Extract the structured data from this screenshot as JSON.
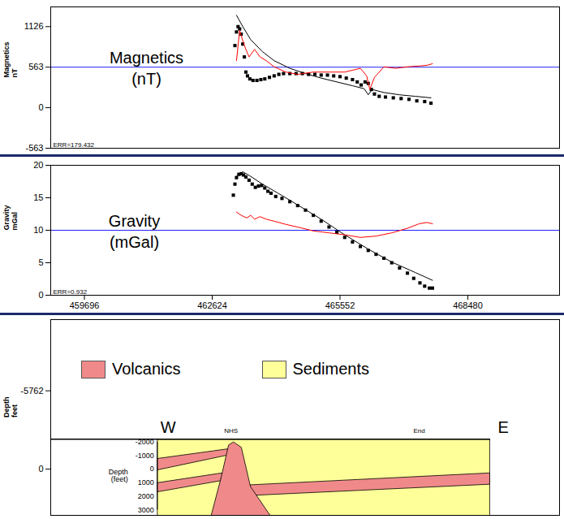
{
  "chart_data": [
    {
      "type": "line",
      "ylabel": "Magnetics nT",
      "panel_label": "Magnetics (nT)",
      "error_label": "ERR=179.432",
      "reference_line": {
        "value": 563,
        "color": "#2020ff"
      },
      "xlim": [
        458924,
        470581
      ],
      "ylim": [
        -563,
        1400
      ],
      "yticks": [
        -563,
        0,
        563,
        1126
      ],
      "tick_labels": "y",
      "series": [
        {
          "type": "scatter",
          "marker": "square",
          "color": "#000000",
          "x": [
            463144,
            463180,
            463216,
            463252,
            463288,
            463324,
            463360,
            463396,
            463432,
            463486,
            463558,
            463648,
            463738,
            463828,
            463935,
            464043,
            464150,
            464258,
            464402,
            464545,
            464689,
            464833,
            464976,
            465120,
            465264,
            465407,
            465551,
            465695,
            465838,
            465946,
            466036,
            466126,
            466198,
            466269,
            466341,
            466449,
            466593,
            466773,
            466952,
            467132,
            467311,
            467491,
            467635
          ],
          "values": [
            863,
            1052,
            1126,
            1094,
            1021,
            884,
            705,
            495,
            442,
            400,
            379,
            379,
            390,
            400,
            421,
            442,
            463,
            474,
            474,
            474,
            474,
            463,
            463,
            453,
            453,
            442,
            432,
            411,
            390,
            358,
            316,
            358,
            337,
            253,
            190,
            158,
            148,
            137,
            127,
            116,
            95,
            85,
            63
          ]
        },
        {
          "type": "line",
          "line_style": "solid",
          "color": "#000000",
          "x": [
            463180,
            463324,
            463504,
            463773,
            464043,
            464402,
            464761,
            465120,
            465479,
            465838,
            466108,
            466198,
            466287,
            466557,
            466916,
            467275,
            467635
          ],
          "values": [
            1284,
            1126,
            947,
            779,
            653,
            547,
            474,
            411,
            358,
            305,
            263,
            179,
            253,
            211,
            179,
            158,
            137
          ]
        },
        {
          "type": "line",
          "line_style": "solid",
          "color": "#ff0000",
          "x": [
            463180,
            463252,
            463360,
            463468,
            463594,
            463720,
            463864,
            464043,
            464312,
            464581,
            464941,
            465300,
            465659,
            466018,
            466162,
            466234,
            466341,
            466557,
            466827,
            467096,
            467365,
            467545,
            467671
          ],
          "values": [
            653,
            1073,
            863,
            705,
            810,
            705,
            653,
            568,
            495,
            463,
            495,
            495,
            495,
            547,
            442,
            253,
            421,
            568,
            547,
            568,
            579,
            589,
            611
          ]
        }
      ]
    },
    {
      "type": "line",
      "ylabel": "Gravity mGal",
      "panel_label": "Gravity (mGal)",
      "error_label": "ERR=0.932",
      "reference_line": {
        "value": 10,
        "color": "#2020ff"
      },
      "xlim": [
        458924,
        470581
      ],
      "xticks": [
        459696,
        462624,
        465552,
        468480
      ],
      "ylim": [
        0,
        20
      ],
      "yticks": [
        0,
        5,
        10,
        15,
        20
      ],
      "tick_labels": true,
      "series": [
        {
          "type": "scatter",
          "marker": "square",
          "color": "#000000",
          "x": [
            463108,
            463144,
            463180,
            463234,
            463288,
            463342,
            463396,
            463468,
            463540,
            463612,
            463684,
            463756,
            463828,
            463900,
            463971,
            464079,
            464222,
            464402,
            464581,
            464761,
            464941,
            465120,
            465300,
            465479,
            465659,
            465838,
            466018,
            466198,
            466377,
            466557,
            466737,
            466916,
            467096,
            467240,
            467383,
            467491,
            467599,
            467671
          ],
          "values": [
            15.4,
            17.1,
            18.1,
            18.6,
            18.7,
            18.5,
            18.2,
            17.7,
            17.1,
            16.6,
            16.8,
            16.9,
            16.5,
            16,
            15.7,
            15.2,
            14.9,
            14.4,
            13.8,
            13.1,
            12.3,
            11.4,
            10.5,
            9.7,
            8.9,
            8.2,
            7.5,
            6.9,
            6.3,
            5.7,
            5,
            4.2,
            3.4,
            2.6,
            1.9,
            1.4,
            1.1,
            1.1
          ]
        },
        {
          "type": "line",
          "line_style": "solid",
          "color": "#000000",
          "x": [
            463180,
            463324,
            463504,
            463773,
            464133,
            464581,
            465120,
            465659,
            466198,
            466737,
            467275,
            467671
          ],
          "values": [
            18.3,
            19,
            18.3,
            17.1,
            15.7,
            13.9,
            11.7,
            9.3,
            7.1,
            5.1,
            3.5,
            2.3
          ]
        },
        {
          "type": "line",
          "line_style": "solid",
          "color": "#ff0000",
          "x": [
            463180,
            463288,
            463414,
            463504,
            463594,
            463720,
            463864,
            464043,
            464312,
            464581,
            464941,
            465300,
            465659,
            466018,
            466377,
            466737,
            467096,
            467365,
            467545,
            467671
          ],
          "values": [
            12.8,
            12.3,
            11.9,
            12.3,
            11.7,
            12.1,
            11.7,
            11.4,
            10.9,
            10.5,
            9.9,
            9.6,
            9.3,
            8.9,
            9.1,
            9.6,
            10.3,
            11,
            11.2,
            11
          ]
        }
      ]
    },
    {
      "type": "cross-section",
      "ylabel": "Depth feet",
      "xlim": [
        458924,
        470581
      ],
      "ylim": [
        -11000,
        3400
      ],
      "yticks": [
        -5762,
        0
      ],
      "tick_labels": "y",
      "legend": "top",
      "surface": -2200,
      "ends": {
        "left": "W",
        "right": "E"
      },
      "markers": [
        {
          "label": "NHS",
          "x": 463054
        },
        {
          "label": "End",
          "x": 467365
        }
      ],
      "inner_axis": {
        "label": "Depth (feet)",
        "ticks": [
          -2000,
          -1000,
          0,
          1000,
          2000,
          3000
        ]
      },
      "series": [
        {
          "name": "Volcanics",
          "color": "#f08a8a",
          "polygons": [
            [
              [
                461366,
                -780
              ],
              [
                463000,
                -1500
              ],
              [
                463000,
                -1050
              ],
              [
                461366,
                56
              ]
            ],
            [
              [
                461366,
                1000
              ],
              [
                462850,
                280
              ],
              [
                462850,
                830
              ],
              [
                461366,
                1670
              ]
            ],
            [
              [
                463400,
                1170
              ],
              [
                468981,
                280
              ],
              [
                468981,
                1110
              ],
              [
                463400,
                1950
              ]
            ],
            [
              [
                462820,
                720
              ],
              [
                463000,
                -1780
              ],
              [
                463110,
                -2000
              ],
              [
                463290,
                -1610
              ],
              [
                463500,
                1280
              ],
              [
                463950,
                3400
              ],
              [
                462600,
                3400
              ]
            ]
          ]
        },
        {
          "name": "Sediments",
          "color": "#ffff99",
          "polygons": [
            [
              [
                461366,
                -2200
              ],
              [
                468981,
                -2200
              ],
              [
                468981,
                3400
              ],
              [
                461366,
                3400
              ]
            ]
          ]
        }
      ]
    }
  ]
}
